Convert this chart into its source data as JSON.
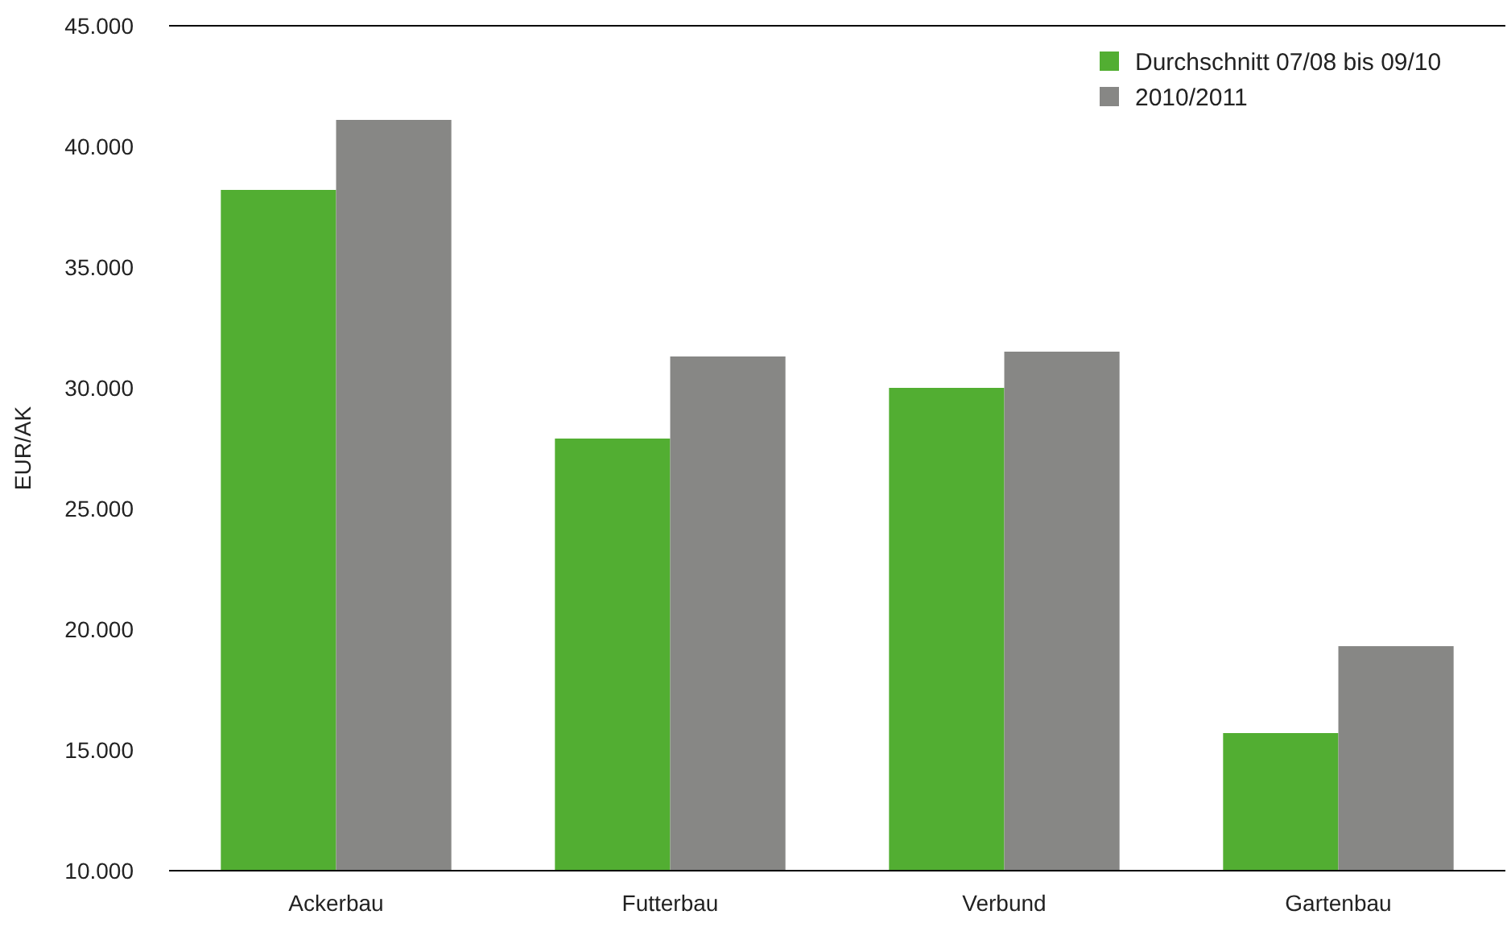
{
  "chart_data": {
    "type": "bar",
    "ylabel": "EUR/AK",
    "categories": [
      "Ackerbau",
      "Futterbau",
      "Verbund",
      "Gartenbau"
    ],
    "series": [
      {
        "name": "Durchschnitt 07/08 bis 09/10",
        "color": "#52ae32",
        "values": [
          38200,
          27900,
          30000,
          15700
        ]
      },
      {
        "name": "2010/2011",
        "color": "#878785",
        "values": [
          41100,
          31300,
          31500,
          19300
        ]
      }
    ],
    "ylim": [
      10000,
      45000
    ],
    "yticks": [
      {
        "value": 10000,
        "label": "10.000"
      },
      {
        "value": 15000,
        "label": "15.000"
      },
      {
        "value": 20000,
        "label": "20.000"
      },
      {
        "value": 25000,
        "label": "25.000"
      },
      {
        "value": 30000,
        "label": "30.000"
      },
      {
        "value": 35000,
        "label": "35.000"
      },
      {
        "value": 40000,
        "label": "40.000"
      },
      {
        "value": 45000,
        "label": "45.000"
      }
    ],
    "grid": false,
    "legend": "top right"
  }
}
